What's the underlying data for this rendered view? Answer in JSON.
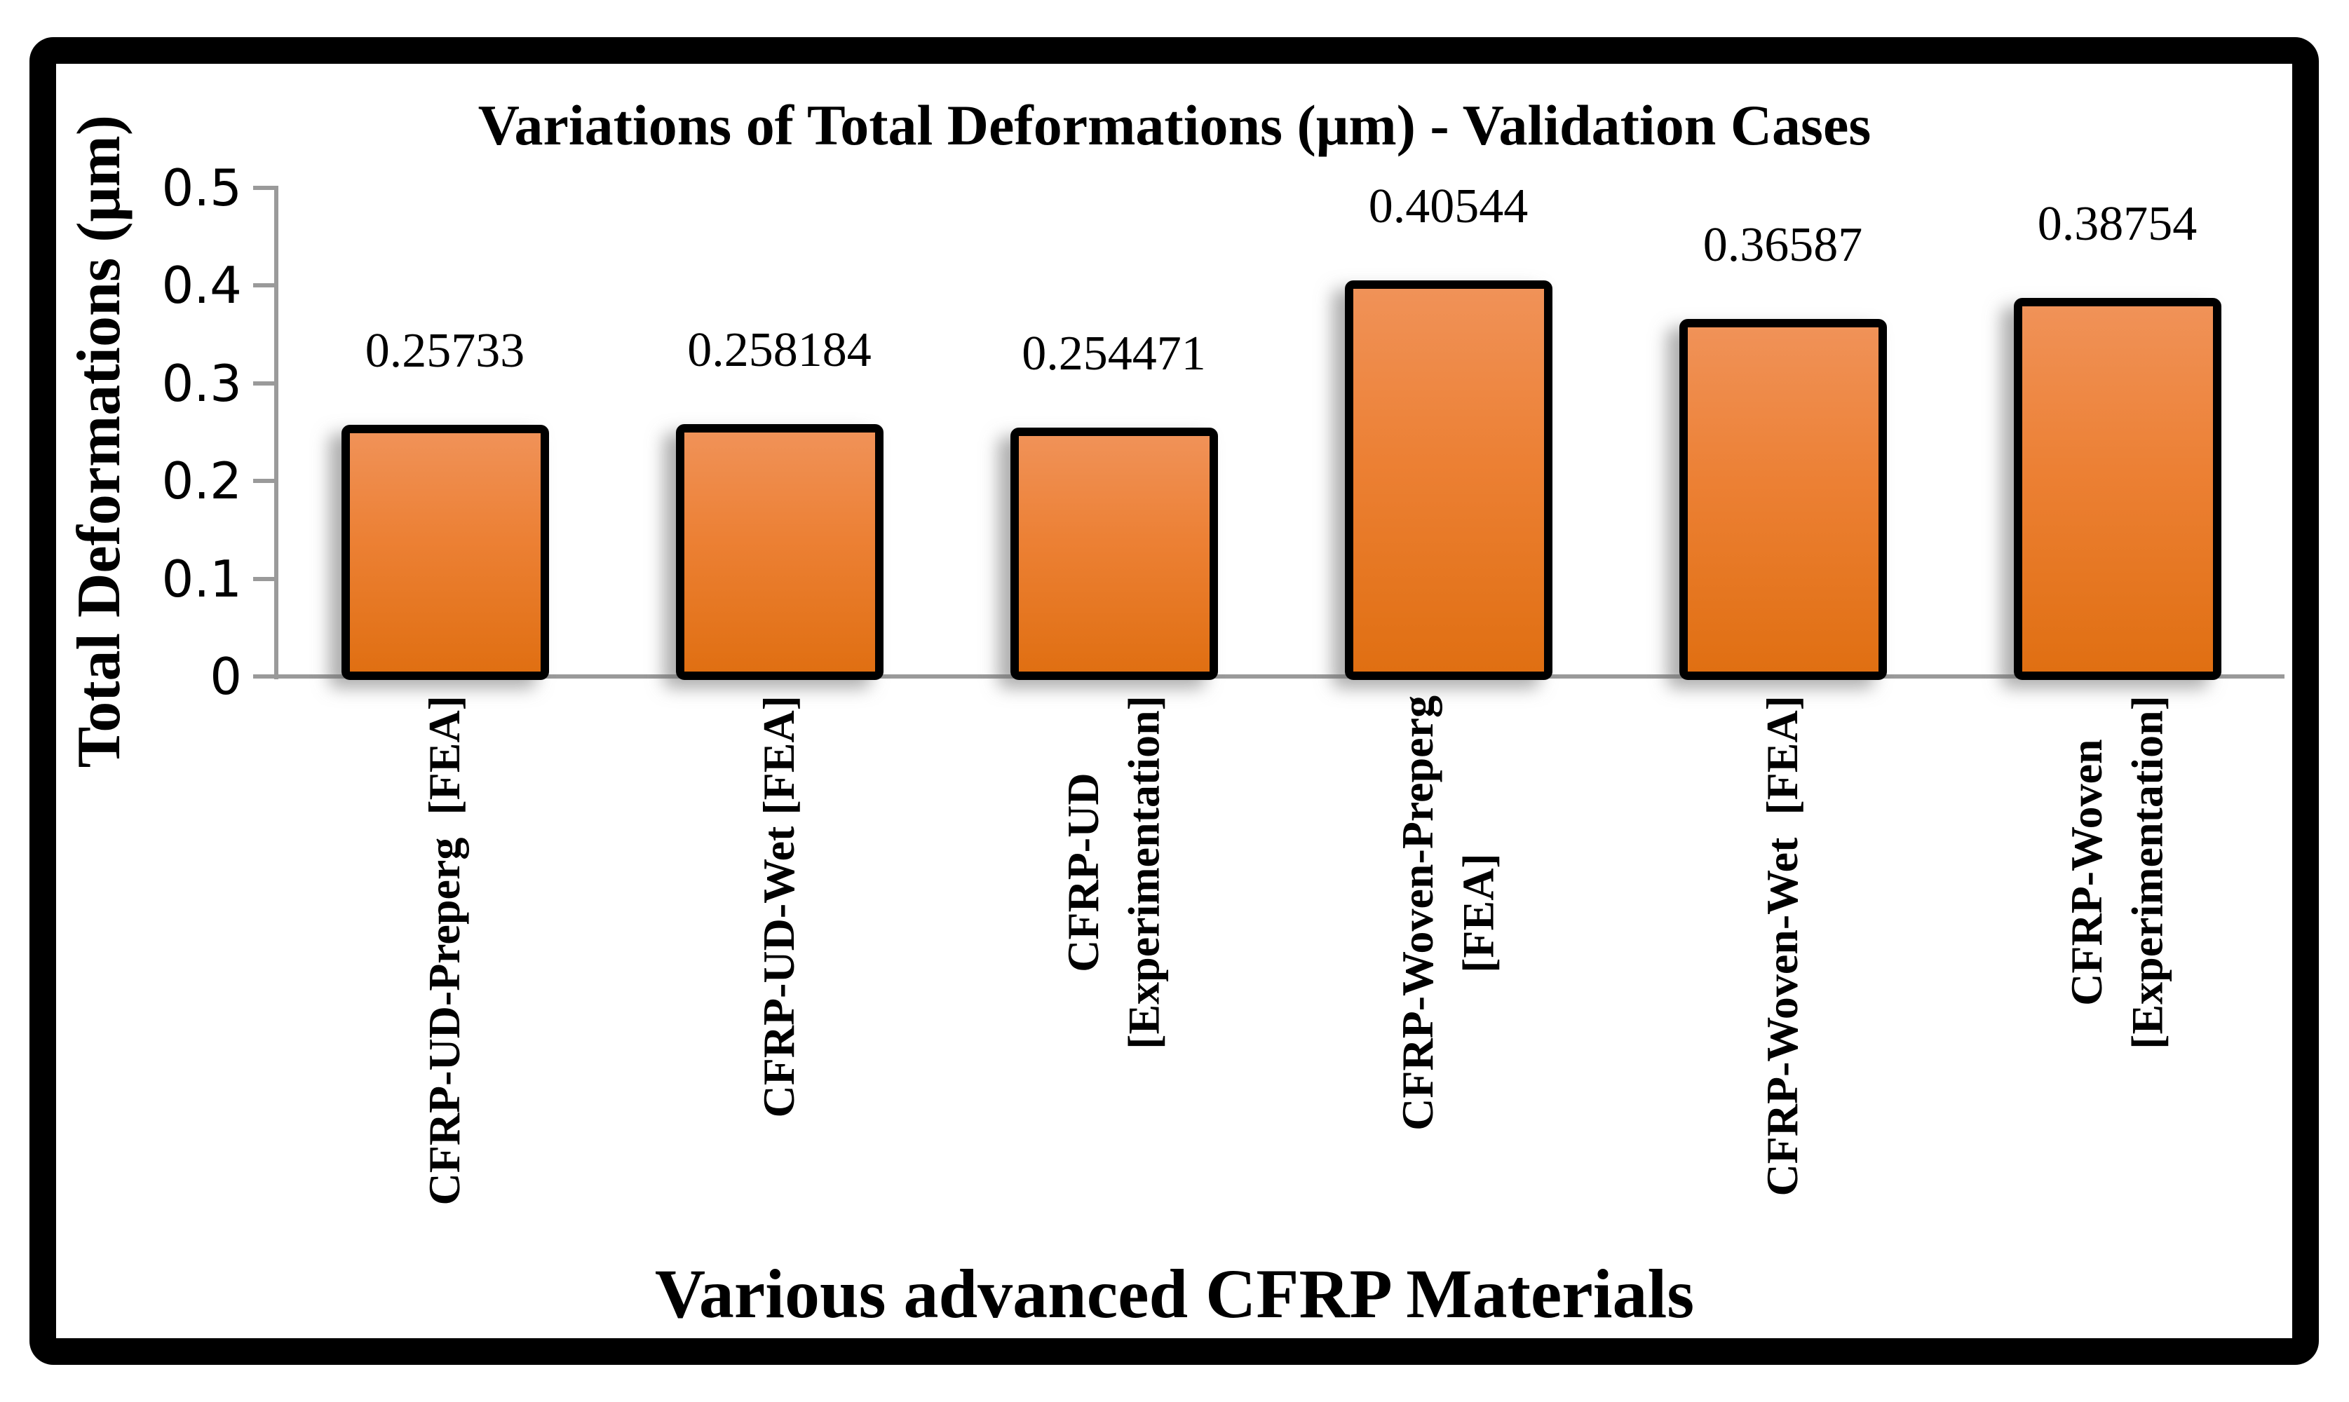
{
  "chart_data": {
    "type": "bar",
    "title": "Variations of Total Deformations (μm) - Validation Cases",
    "xlabel": "Various advanced CFRP Materials",
    "ylabel": "Total Deformations (μm)",
    "categories": [
      "CFRP-UD-Preperg  [FEA]",
      "CFRP-UD-Wet [FEA]",
      "CFRP-UD\n[Experimentation]",
      "CFRP-Woven-Preperg\n[FEA]",
      "CFRP-Woven-Wet  [FEA]",
      "CFRP-Woven\n[Experimentation]"
    ],
    "values": [
      0.25733,
      0.258184,
      0.254471,
      0.40544,
      0.36587,
      0.38754
    ],
    "value_labels": [
      "0.25733",
      "0.258184",
      "0.254471",
      "0.40544",
      "0.36587",
      "0.38754"
    ],
    "y_ticks": [
      "0.5",
      "0.4",
      "0.3",
      "0.2",
      "0.1",
      "0"
    ],
    "ylim": [
      0,
      0.5
    ],
    "grid": false,
    "legend": null,
    "colors": {
      "bar_fill_top": "#F09258",
      "bar_fill_mid": "#EC8034",
      "bar_fill_bottom": "#E06F12",
      "bar_border": "#000000",
      "axis_line": "#9A9A9A",
      "frame": "#000000",
      "text": "#000000",
      "background": "#FFFFFF"
    }
  }
}
